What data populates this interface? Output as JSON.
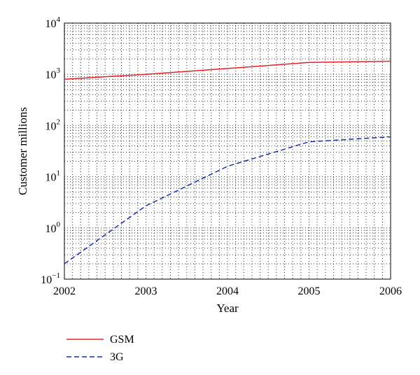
{
  "chart_data": {
    "type": "line",
    "title": "",
    "xlabel": "Year",
    "ylabel": "Customer millions",
    "yscale": "log",
    "x": [
      2002,
      2003,
      2004,
      2005,
      2006
    ],
    "xlim": [
      2002,
      2006
    ],
    "ylim": [
      0.1,
      10000
    ],
    "x_ticks": [
      "2002",
      "2003",
      "2004",
      "2005",
      "2006"
    ],
    "y_ticks": [
      {
        "base": "10",
        "exp": "−1",
        "value": 0.1
      },
      {
        "base": "10",
        "exp": "0",
        "value": 1
      },
      {
        "base": "10",
        "exp": "1",
        "value": 10
      },
      {
        "base": "10",
        "exp": "2",
        "value": 100
      },
      {
        "base": "10",
        "exp": "3",
        "value": 1000
      },
      {
        "base": "10",
        "exp": "4",
        "value": 10000
      }
    ],
    "grid": true,
    "legend_position": "below",
    "series": [
      {
        "name": "GSM",
        "values": [
          800,
          1000,
          1300,
          1700,
          1800
        ],
        "color": "#e8202a",
        "style": "solid"
      },
      {
        "name": "3G",
        "values": [
          0.2,
          2.7,
          16,
          48,
          60
        ],
        "color": "#1c2fa8",
        "style": "dashed"
      }
    ]
  }
}
